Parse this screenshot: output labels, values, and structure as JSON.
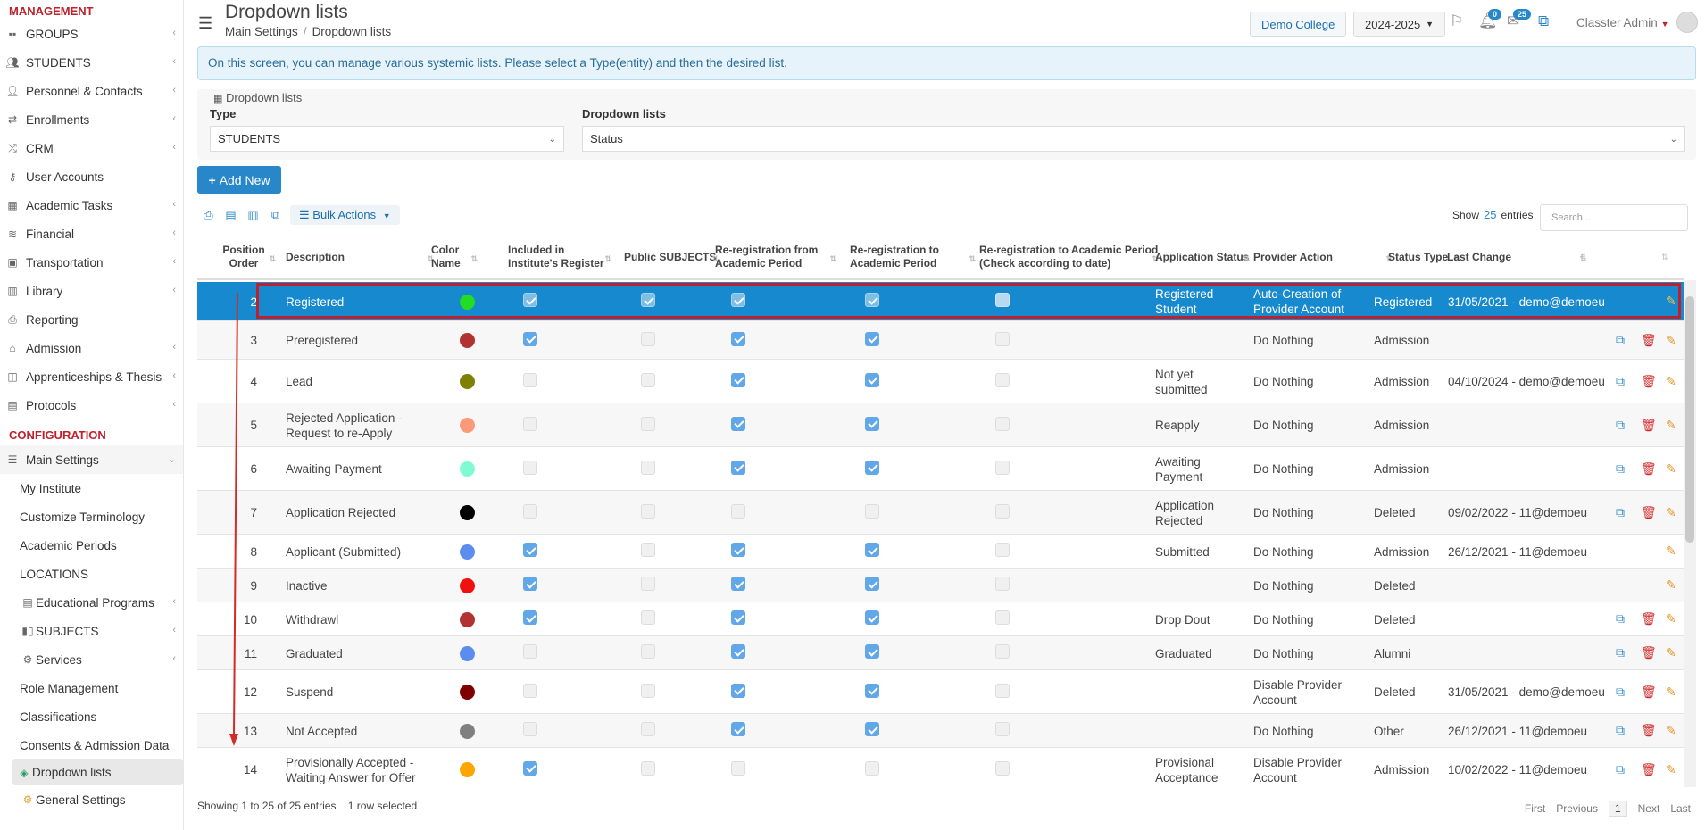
{
  "sidebar": {
    "sec_management": "MANAGEMENT",
    "management_items": [
      {
        "label": "GROUPS",
        "icon": "groups-icon",
        "chev": "‹"
      },
      {
        "label": "STUDENTS",
        "icon": "students-icon",
        "chev": "‹"
      },
      {
        "label": "Personnel & Contacts",
        "icon": "personnel-icon",
        "chev": "‹"
      },
      {
        "label": "Enrollments",
        "icon": "enrollments-icon",
        "chev": "‹"
      },
      {
        "label": "CRM",
        "icon": "crm-icon",
        "chev": "‹"
      },
      {
        "label": "User Accounts",
        "icon": "key-icon",
        "chev": ""
      },
      {
        "label": "Academic Tasks",
        "icon": "tasks-icon",
        "chev": "‹"
      },
      {
        "label": "Financial",
        "icon": "coins-icon",
        "chev": "‹"
      },
      {
        "label": "Transportation",
        "icon": "bus-icon",
        "chev": "‹"
      },
      {
        "label": "Library",
        "icon": "library-icon",
        "chev": "‹"
      },
      {
        "label": "Reporting",
        "icon": "printer-icon",
        "chev": ""
      },
      {
        "label": "Admission",
        "icon": "bank-icon",
        "chev": "‹"
      },
      {
        "label": "Apprenticeships & Thesis",
        "icon": "box-icon",
        "chev": "‹"
      },
      {
        "label": "Protocols",
        "icon": "protocols-icon",
        "chev": "‹"
      }
    ],
    "sec_configuration": "CONFIGURATION",
    "main_settings": "Main Settings",
    "sub_items": [
      {
        "label": "My Institute",
        "icon": "",
        "chev": ""
      },
      {
        "label": "Customize Terminology",
        "icon": "",
        "chev": ""
      },
      {
        "label": "Academic Periods",
        "icon": "",
        "chev": ""
      },
      {
        "label": "LOCATIONS",
        "icon": "",
        "chev": ""
      },
      {
        "label": "Educational Programs",
        "icon": "programs-icon",
        "chev": "‹"
      },
      {
        "label": "SUBJECTS",
        "icon": "books-icon",
        "chev": "‹"
      },
      {
        "label": "Services",
        "icon": "services-icon",
        "chev": "‹"
      },
      {
        "label": "Role Management",
        "icon": "",
        "chev": ""
      },
      {
        "label": "Classifications",
        "icon": "",
        "chev": ""
      },
      {
        "label": "Consents & Admission Data",
        "icon": "",
        "chev": ""
      },
      {
        "label": "Dropdown lists",
        "icon": "layers-icon",
        "chev": ""
      },
      {
        "label": "General Settings",
        "icon": "gear-icon",
        "chev": ""
      }
    ]
  },
  "header": {
    "title": "Dropdown lists",
    "breadcrumb_1": "Main Settings",
    "breadcrumb_sep": "/",
    "breadcrumb_2": "Dropdown lists",
    "college": "Demo College",
    "year": "2024-2025",
    "notifications_count": "0",
    "messages_count": "25",
    "user": "Classter Admin"
  },
  "info_text": "On this screen, you can manage various systemic lists. Please select a Type(entity) and then the desired list.",
  "filter": {
    "panel_title": "Dropdown lists",
    "type_label": "Type",
    "type_value": "STUDENTS",
    "list_label": "Dropdown lists",
    "list_value": "Status"
  },
  "add_new": "Add New",
  "bulk_actions": "Bulk Actions",
  "show_label": "Show",
  "show_value": "25",
  "entries_label": "entries",
  "search_placeholder": "Search...",
  "columns": [
    "Position Order",
    "Description",
    "Color Name",
    "Included in Institute's Register",
    "Public SUBJECTS",
    "Re-registration from Academic Period",
    "Re-registration to Academic Period",
    "Re-registration to Academic Period (Check according to date)",
    "Application Status",
    "Provider Action",
    "Status Type",
    "Last Change"
  ],
  "rows": [
    {
      "pos": "2",
      "desc": "Registered",
      "color": "#22dd22",
      "inc": true,
      "pub": true,
      "from": true,
      "to": true,
      "date": false,
      "app": "Registered Student",
      "prov": "Auto-Creation of Provider Account",
      "stype": "Registered",
      "last": "31/05/2021 - demo@demoeu",
      "actions": [
        "edit"
      ]
    },
    {
      "pos": "3",
      "desc": "Preregistered",
      "color": "#b23232",
      "inc": true,
      "pub": false,
      "from": true,
      "to": true,
      "date": false,
      "app": "",
      "prov": "Do Nothing",
      "stype": "Admission",
      "last": "",
      "actions": [
        "copy",
        "delete",
        "edit"
      ]
    },
    {
      "pos": "4",
      "desc": "Lead",
      "color": "#808000",
      "inc": false,
      "pub": false,
      "from": true,
      "to": true,
      "date": false,
      "app": "Not yet submitted",
      "prov": "Do Nothing",
      "stype": "Admission",
      "last": "04/10/2024 - demo@demoeu",
      "actions": [
        "copy",
        "delete",
        "edit"
      ]
    },
    {
      "pos": "5",
      "desc": "Rejected Application - Request to re-Apply",
      "color": "#fa9a78",
      "inc": false,
      "pub": false,
      "from": true,
      "to": true,
      "date": false,
      "app": "Reapply",
      "prov": "Do Nothing",
      "stype": "Admission",
      "last": "",
      "actions": [
        "copy",
        "delete",
        "edit"
      ]
    },
    {
      "pos": "6",
      "desc": "Awaiting Payment",
      "color": "#7ffad2",
      "inc": false,
      "pub": false,
      "from": true,
      "to": true,
      "date": false,
      "app": "Awaiting Payment",
      "prov": "Do Nothing",
      "stype": "Admission",
      "last": "",
      "actions": [
        "copy",
        "delete",
        "edit"
      ]
    },
    {
      "pos": "7",
      "desc": "Application Rejected",
      "color": "#000000",
      "inc": false,
      "pub": false,
      "from": false,
      "to": false,
      "date": false,
      "app": "Application Rejected",
      "prov": "Do Nothing",
      "stype": "Deleted",
      "last": "09/02/2022 - 11@demoeu",
      "actions": [
        "copy",
        "delete",
        "edit"
      ]
    },
    {
      "pos": "8",
      "desc": "Applicant (Submitted)",
      "color": "#5b8def",
      "inc": true,
      "pub": false,
      "from": true,
      "to": true,
      "date": false,
      "app": "Submitted",
      "prov": "Do Nothing",
      "stype": "Admission",
      "last": "26/12/2021 - 11@demoeu",
      "actions": [
        "edit"
      ]
    },
    {
      "pos": "9",
      "desc": "Inactive",
      "color": "#f01010",
      "inc": true,
      "pub": false,
      "from": true,
      "to": true,
      "date": false,
      "app": "",
      "prov": "Do Nothing",
      "stype": "Deleted",
      "last": "",
      "actions": [
        "edit"
      ]
    },
    {
      "pos": "10",
      "desc": "Withdrawl",
      "color": "#b23232",
      "inc": true,
      "pub": false,
      "from": true,
      "to": true,
      "date": false,
      "app": "Drop Dout",
      "prov": "Do Nothing",
      "stype": "Deleted",
      "last": "",
      "actions": [
        "copy",
        "delete",
        "edit"
      ]
    },
    {
      "pos": "11",
      "desc": "Graduated",
      "color": "#5b8def",
      "inc": false,
      "pub": false,
      "from": true,
      "to": true,
      "date": false,
      "app": "Graduated",
      "prov": "Do Nothing",
      "stype": "Alumni",
      "last": "",
      "actions": [
        "copy",
        "delete",
        "edit"
      ]
    },
    {
      "pos": "12",
      "desc": "Suspend",
      "color": "#800000",
      "inc": false,
      "pub": false,
      "from": true,
      "to": true,
      "date": false,
      "app": "",
      "prov": "Disable Provider Account",
      "stype": "Deleted",
      "last": "31/05/2021 - demo@demoeu",
      "actions": [
        "copy",
        "delete",
        "edit"
      ]
    },
    {
      "pos": "13",
      "desc": "Not Accepted",
      "color": "#808080",
      "inc": false,
      "pub": false,
      "from": true,
      "to": true,
      "date": false,
      "app": "",
      "prov": "Do Nothing",
      "stype": "Other",
      "last": "26/12/2021 - 11@demoeu",
      "actions": [
        "copy",
        "delete",
        "edit"
      ]
    },
    {
      "pos": "14",
      "desc": "Provisionally Accepted - Waiting Answer for Offer",
      "color": "#ffa500",
      "inc": true,
      "pub": false,
      "from": false,
      "to": false,
      "date": false,
      "app": "Provisional Acceptance",
      "prov": "Disable Provider Account",
      "stype": "Admission",
      "last": "10/02/2022 - 11@demoeu",
      "actions": [
        "copy",
        "delete",
        "edit"
      ]
    }
  ],
  "footer": {
    "summary": "Showing 1 to 25 of 25 entries",
    "selected": "1 row selected",
    "first": "First",
    "previous": "Previous",
    "page": "1",
    "next": "Next",
    "last": "Last"
  },
  "colors": {
    "accent": "#2787c8",
    "selected_row": "#1689cf",
    "highlight_border": "#c0202b",
    "section_red": "#c0202b"
  }
}
